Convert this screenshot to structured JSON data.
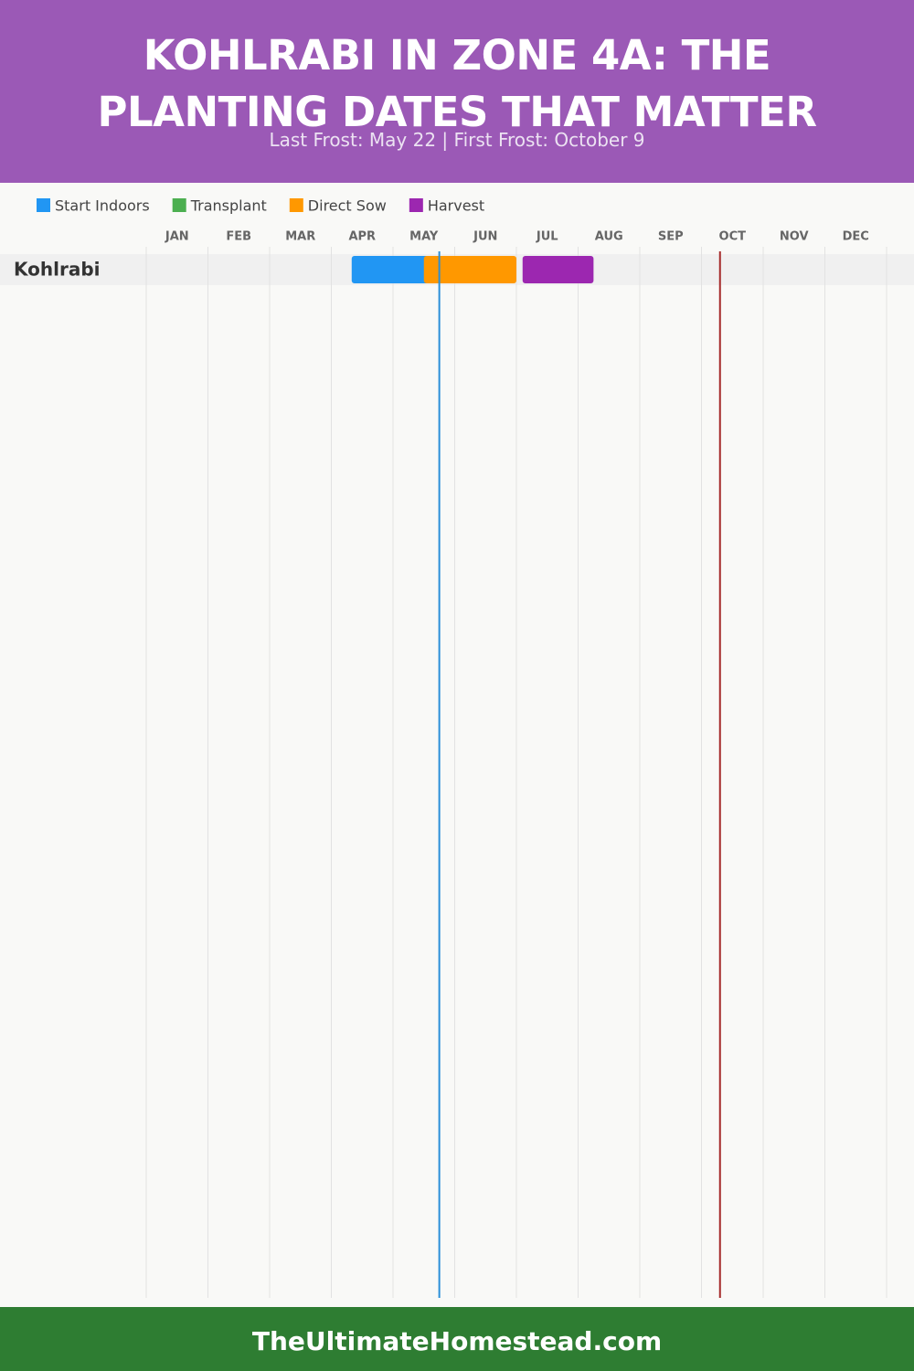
{
  "chart_data": {
    "type": "gantt",
    "title": "KOHLRABI IN ZONE 4A: THE PLANTING DATES THAT MATTER",
    "subtitle": "Last Frost: May 22 | First Frost: October 9",
    "categories": [
      "JAN",
      "FEB",
      "MAR",
      "APR",
      "MAY",
      "JUN",
      "JUL",
      "AUG",
      "SEP",
      "OCT",
      "NOV",
      "DEC"
    ],
    "xlim": [
      0,
      12
    ],
    "rows": [
      "Kohlrabi"
    ],
    "series": [
      {
        "name": "Start Indoors",
        "color": "#2196f3",
        "start": [
          3.33
        ],
        "end": [
          4.6
        ]
      },
      {
        "name": "Transplant",
        "color": "#4caf50",
        "start": [
          null
        ],
        "end": [
          null
        ]
      },
      {
        "name": "Direct Sow",
        "color": "#ff9800",
        "start": [
          4.5
        ],
        "end": [
          6.0
        ]
      },
      {
        "name": "Harvest",
        "color": "#9c27b0",
        "start": [
          6.1
        ],
        "end": [
          7.25
        ]
      }
    ],
    "markers": [
      {
        "value": 4.75,
        "color": "#2a8fd8"
      },
      {
        "value": 9.3,
        "color": "#a52a2a"
      }
    ],
    "footer": "TheUltimateHomestead.com"
  }
}
